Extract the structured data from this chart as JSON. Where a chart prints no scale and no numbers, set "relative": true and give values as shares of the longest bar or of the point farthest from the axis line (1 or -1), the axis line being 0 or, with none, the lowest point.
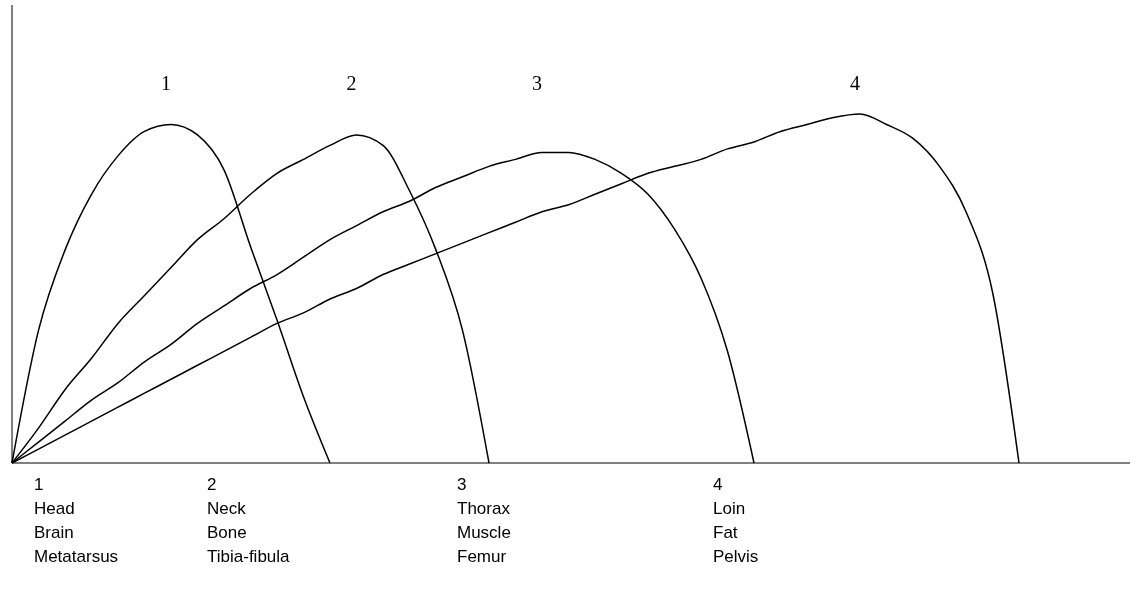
{
  "chart_data": {
    "type": "line",
    "relative": true,
    "tick_labels": false,
    "marker": "none",
    "line_style": "solid",
    "categories": [
      null,
      null,
      null,
      null,
      null,
      null,
      null,
      null,
      null,
      null,
      null,
      null,
      null,
      null,
      null,
      null,
      null,
      null,
      null,
      null,
      null,
      null,
      null,
      null,
      null,
      null,
      null,
      null,
      null,
      null,
      null,
      null,
      null,
      null,
      null,
      null,
      null,
      null,
      null,
      null,
      null,
      null,
      null
    ],
    "series": [
      {
        "name": "1",
        "color": "#000000",
        "values": [
          0,
          0.38,
          0.61,
          0.77,
          0.88,
          0.95,
          0.97,
          0.94,
          0.84,
          0.62,
          0.41,
          0.19,
          0,
          null,
          null,
          null,
          null,
          null,
          null,
          null,
          null,
          null,
          null,
          null,
          null,
          null,
          null,
          null,
          null,
          null,
          null,
          null,
          null,
          null,
          null,
          null,
          null,
          null,
          null,
          null,
          null,
          null,
          null
        ]
      },
      {
        "name": "2",
        "color": "#000000",
        "values": [
          0,
          0.1,
          0.21,
          0.3,
          0.4,
          0.48,
          0.56,
          0.64,
          0.7,
          0.77,
          0.83,
          0.87,
          0.91,
          0.94,
          0.91,
          0.78,
          0.61,
          0.38,
          0,
          null,
          null,
          null,
          null,
          null,
          null,
          null,
          null,
          null,
          null,
          null,
          null,
          null,
          null,
          null,
          null,
          null,
          null,
          null,
          null,
          null,
          null,
          null,
          null
        ]
      },
      {
        "name": "3",
        "color": "#000000",
        "values": [
          0,
          0.06,
          0.12,
          0.18,
          0.23,
          0.29,
          0.34,
          0.4,
          0.45,
          0.5,
          0.54,
          0.59,
          0.64,
          0.68,
          0.72,
          0.75,
          0.79,
          0.82,
          0.85,
          0.87,
          0.89,
          0.89,
          0.87,
          0.83,
          0.77,
          0.67,
          0.53,
          0.32,
          0,
          null,
          null,
          null,
          null,
          null,
          null,
          null,
          null,
          null,
          null,
          null,
          null,
          null,
          null
        ]
      },
      {
        "name": "4",
        "color": "#000000",
        "values": [
          0,
          0.04,
          0.08,
          0.12,
          0.16,
          0.2,
          0.24,
          0.28,
          0.32,
          0.36,
          0.4,
          0.43,
          0.47,
          0.5,
          0.54,
          0.57,
          0.6,
          0.63,
          0.66,
          0.69,
          0.72,
          0.74,
          0.77,
          0.8,
          0.83,
          0.85,
          0.87,
          0.9,
          0.92,
          0.95,
          0.97,
          0.99,
          1,
          0.97,
          0.93,
          0.85,
          0.72,
          0.49,
          0,
          null,
          null,
          null,
          null
        ]
      }
    ],
    "annotations": [
      "1\nHead\nBrain\nMetatarsus",
      "2\nNeck\nBone\nTibia-fibula",
      "3\nThorax\nMuscle\nFemur",
      "4\nLoin\nFat\nPelvis"
    ]
  }
}
